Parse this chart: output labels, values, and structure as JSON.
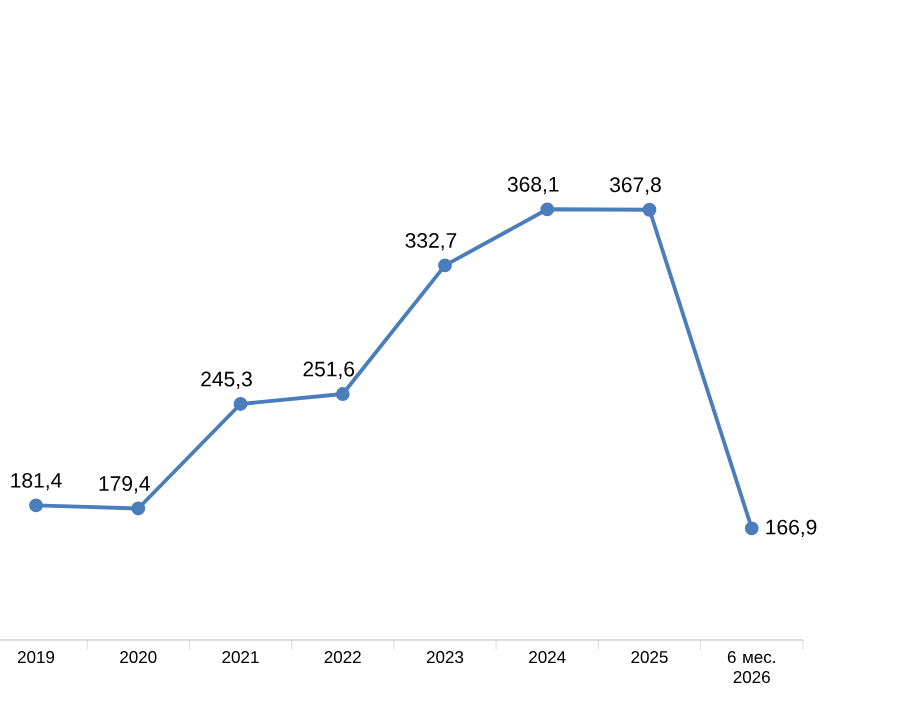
{
  "chart_data": {
    "type": "line",
    "categories": [
      "2019",
      "2020",
      "2021",
      "2022",
      "2023",
      "2024",
      "2025",
      "6 мес. 2026"
    ],
    "values": [
      181.4,
      179.4,
      245.3,
      251.6,
      332.7,
      368.1,
      367.8,
      166.9
    ],
    "value_labels": [
      "181,4",
      "179,4",
      "245,3",
      "251,6",
      "332,7",
      "368,1",
      "367,8",
      "166,9"
    ],
    "color": "#4a7ebb",
    "marker": "circle",
    "line_style": "solid"
  }
}
